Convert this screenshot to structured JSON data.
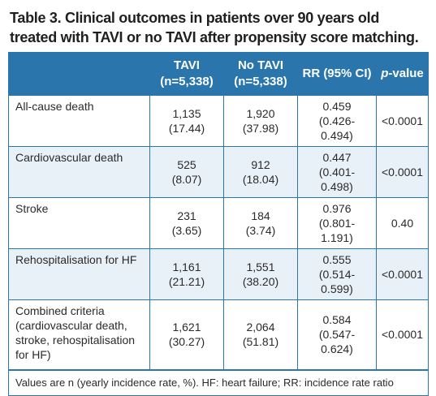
{
  "title": "Table 3. Clinical outcomes in patients over 90 years old treated with TAVI or no TAVI after propensity score matching.",
  "headers": {
    "tavi_line1": "TAVI",
    "tavi_line2": "(n=5,338)",
    "notavi_line1": "No TAVI",
    "notavi_line2": "(n=5,338)",
    "rr": "RR (95% CI)",
    "pvalue_italic": "p",
    "pvalue_rest": "-value"
  },
  "rows": [
    {
      "label": "All-cause death",
      "tavi_n": "1,135",
      "tavi_rate": "(17.44)",
      "notavi_n": "1,920",
      "notavi_rate": "(37.98)",
      "rr": "0.459",
      "ci": "(0.426-0.494)",
      "p": "<0.0001"
    },
    {
      "label": "Cardiovascular death",
      "tavi_n": "525",
      "tavi_rate": "(8.07)",
      "notavi_n": "912",
      "notavi_rate": "(18.04)",
      "rr": "0.447",
      "ci": "(0.401-0.498)",
      "p": "<0.0001"
    },
    {
      "label": "Stroke",
      "tavi_n": "231",
      "tavi_rate": "(3.65)",
      "notavi_n": "184",
      "notavi_rate": "(3.74)",
      "rr": "0.976",
      "ci": "(0.801-1.191)",
      "p": "0.40"
    },
    {
      "label": "Rehospitalisation for HF",
      "tavi_n": "1,161",
      "tavi_rate": "(21.21)",
      "notavi_n": "1,551",
      "notavi_rate": "(38.20)",
      "rr": "0.555",
      "ci": "(0.514-0.599)",
      "p": "<0.0001"
    },
    {
      "label": "Combined criteria (cardiovascular death, stroke, rehospitalisation for HF)",
      "tavi_n": "1,621",
      "tavi_rate": "(30.27)",
      "notavi_n": "2,064",
      "notavi_rate": "(51.81)",
      "rr": "0.584",
      "ci": "(0.547-0.624)",
      "p": "<0.0001"
    }
  ],
  "footnote": "Values are n (yearly incidence rate, %). HF: heart failure; RR: incidence rate ratio",
  "colors": {
    "header_bg": "#2a76ac",
    "stripe_bg": "#e9f1f8",
    "border": "#2a76ac"
  }
}
